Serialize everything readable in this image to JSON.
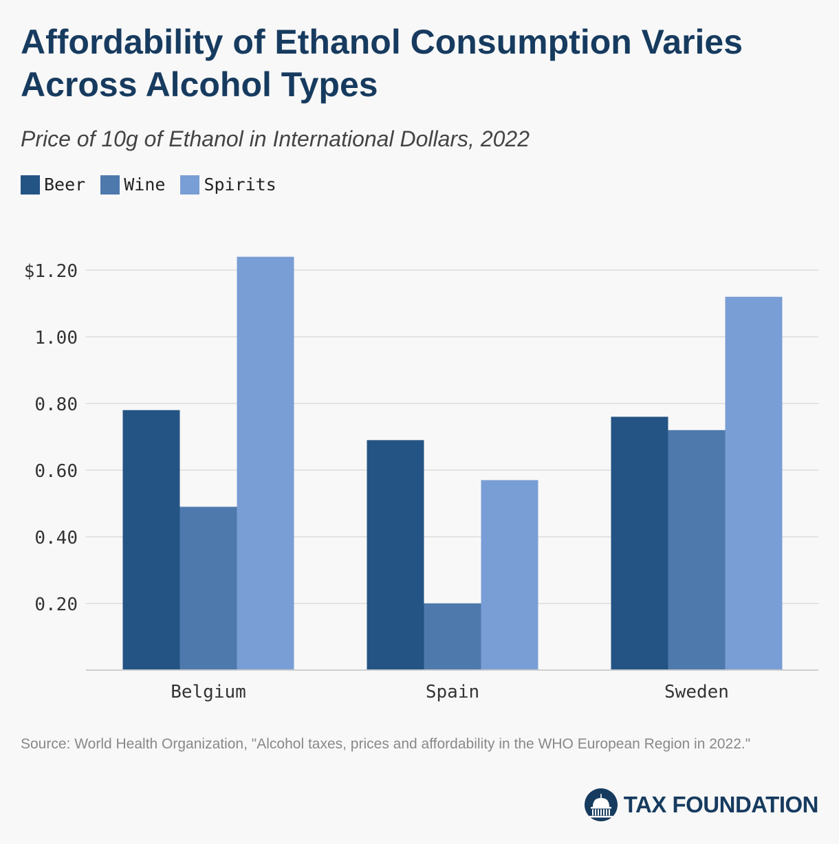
{
  "header": {
    "title": "Affordability of Ethanol Consumption Varies Across Alcohol Types",
    "subtitle": "Price of 10g of Ethanol in International Dollars, 2022"
  },
  "legend": [
    {
      "label": "Beer",
      "color": "#245484"
    },
    {
      "label": "Wine",
      "color": "#4e79ad"
    },
    {
      "label": "Spirits",
      "color": "#799ed5"
    }
  ],
  "chart_data": {
    "type": "bar",
    "categories": [
      "Belgium",
      "Spain",
      "Sweden"
    ],
    "series": [
      {
        "name": "Beer",
        "values": [
          0.78,
          0.69,
          0.76
        ],
        "color": "#245484"
      },
      {
        "name": "Wine",
        "values": [
          0.49,
          0.2,
          0.72
        ],
        "color": "#4e79ad"
      },
      {
        "name": "Spirits",
        "values": [
          1.24,
          0.57,
          1.12
        ],
        "color": "#799ed5"
      }
    ],
    "yticks": [
      0.2,
      0.4,
      0.6,
      0.8,
      1.0,
      1.2
    ],
    "ytick_labels": [
      "0.20",
      "0.40",
      "0.60",
      "0.80",
      "1.00",
      "$1.20"
    ],
    "ylim": [
      0,
      1.2
    ],
    "grid": true,
    "legend_position": "top-left"
  },
  "footer": {
    "source": "Source: World Health Organization, \"Alcohol taxes, prices and affordability in the WHO European Region in 2022.\"",
    "logo_text": "TAX FOUNDATION",
    "logo_icon": "capitol-dome-icon"
  }
}
